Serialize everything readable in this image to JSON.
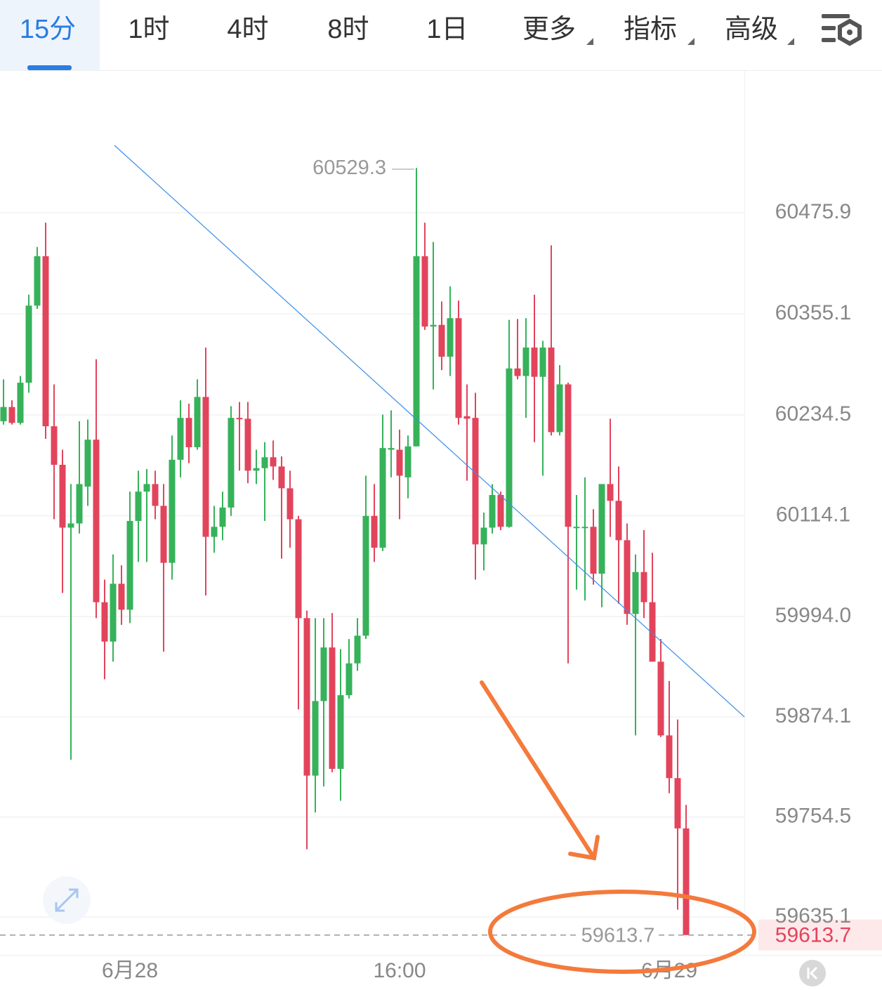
{
  "tabs": [
    "15分",
    "1时",
    "4时",
    "8时",
    "1日",
    "更多",
    "指标",
    "高级"
  ],
  "chart_data": {
    "type": "candlestick",
    "up_color": "#36b25a",
    "down_color": "#e2445c",
    "grid": true,
    "categories": [
      null,
      null,
      null,
      null,
      null,
      null,
      null,
      null,
      null,
      null,
      null,
      null,
      null,
      null,
      null,
      "6月28",
      null,
      null,
      null,
      null,
      null,
      null,
      null,
      null,
      null,
      null,
      null,
      null,
      null,
      null,
      null,
      null,
      null,
      null,
      null,
      null,
      null,
      null,
      null,
      null,
      null,
      null,
      null,
      null,
      null,
      null,
      null,
      "16:00",
      null,
      null,
      null,
      null,
      null,
      null,
      null,
      null,
      null,
      null,
      null,
      null,
      null,
      null,
      null,
      null,
      null,
      null,
      null,
      null,
      null,
      null,
      null,
      null,
      null,
      null,
      null,
      null,
      null,
      null,
      null,
      "6月29",
      null,
      null
    ],
    "open": [
      60227,
      60244,
      60225,
      60273,
      60365,
      60424,
      60221,
      60175,
      60100,
      60105,
      60149,
      60205,
      60011,
      59964,
      60033,
      60002,
      60108,
      60143,
      60152,
      60126,
      60058,
      60181,
      60231,
      60196,
      60256,
      60089,
      60101,
      60124,
      60231,
      60230,
      60168,
      60171,
      60184,
      60173,
      60147,
      60110,
      59992,
      59804,
      59893,
      59957,
      59812,
      59900,
      59938,
      59971,
      60114,
      60076,
      60193,
      60193,
      60160,
      60197,
      60424,
      60340,
      60342,
      60304,
      60350,
      60233,
      60231,
      60080,
      60100,
      60139,
      60101,
      60290,
      60281,
      60315,
      60280,
      60315,
      60214,
      60271,
      60100,
      60100,
      60101,
      60045,
      60152,
      60132,
      60085,
      59997,
      60047,
      60011,
      59940,
      59852,
      59801,
      59741
    ],
    "high": [
      60277,
      60252,
      60281,
      60378,
      60435,
      60464,
      60271,
      60193,
      60152,
      60227,
      60229,
      60301,
      60038,
      60068,
      60055,
      60143,
      60168,
      60170,
      60168,
      60152,
      60210,
      60252,
      60248,
      60277,
      60315,
      60126,
      60143,
      60245,
      60250,
      60250,
      60193,
      60202,
      60204,
      60185,
      60168,
      60114,
      60001,
      59992,
      59992,
      59998,
      59955,
      59967,
      59992,
      60162,
      60152,
      60235,
      60240,
      60217,
      60210,
      60529.3,
      60464,
      60441,
      60370,
      60388,
      60371,
      60271,
      60261,
      60118,
      60152,
      60143,
      60348,
      60349,
      60350,
      60378,
      60323,
      60437,
      60294,
      60273,
      60139,
      60160,
      60122,
      60152,
      60230,
      60173,
      60105,
      60068,
      60097,
      60070,
      59967,
      59917,
      59871,
      59769
    ],
    "low": [
      60223,
      60223,
      60223,
      60261,
      60361,
      60206,
      60110,
      60022,
      59823,
      60093,
      60126,
      59992,
      59919,
      59940,
      59984,
      59986,
      60059,
      60059,
      60110,
      59952,
      60038,
      60160,
      60177,
      60193,
      60019,
      60070,
      60085,
      60114,
      60168,
      60153,
      60152,
      60108,
      60157,
      60063,
      60076,
      59883,
      59716,
      59760,
      59791,
      59808,
      59774,
      59896,
      59929,
      59967,
      60059,
      60072,
      60160,
      60110,
      60135,
      60197,
      60336,
      60265,
      60288,
      60281,
      60223,
      60156,
      60038,
      60049,
      60093,
      60097,
      60100,
      60277,
      60231,
      60202,
      60162,
      60210,
      60210,
      59938,
      60026,
      60013,
      60032,
      60005,
      60089,
      60009,
      59984,
      59852,
      59992,
      59940,
      59850,
      59783,
      59644,
      59613.7
    ],
    "close": [
      60244,
      60225,
      60273,
      60365,
      60424,
      60221,
      60175,
      60100,
      60105,
      60152,
      60205,
      60011,
      59964,
      60033,
      60002,
      60108,
      60143,
      60152,
      60126,
      60058,
      60181,
      60231,
      60196,
      60256,
      60089,
      60101,
      60124,
      60231,
      60230,
      60168,
      60171,
      60184,
      60173,
      60147,
      60110,
      59992,
      59804,
      59893,
      59957,
      59812,
      59900,
      59938,
      59971,
      60114,
      60076,
      60195,
      60195,
      60162,
      60197,
      60424,
      60340,
      60342,
      60304,
      60350,
      60231,
      60230,
      60080,
      60100,
      60139,
      60101,
      60290,
      60281,
      60315,
      60280,
      60315,
      60214,
      60271,
      60101,
      60101,
      60101,
      60045,
      60152,
      60132,
      60085,
      59997,
      60047,
      60011,
      59940,
      59852,
      59801,
      59741,
      59613.7
    ],
    "ylim": [
      59590,
      60646
    ],
    "yticks": [
      60475.9,
      60355.1,
      60234.5,
      60114.1,
      {
        "value": 59994.0,
        "label": "59994.0"
      },
      59874.1,
      59754.5,
      59635.1
    ]
  }
}
